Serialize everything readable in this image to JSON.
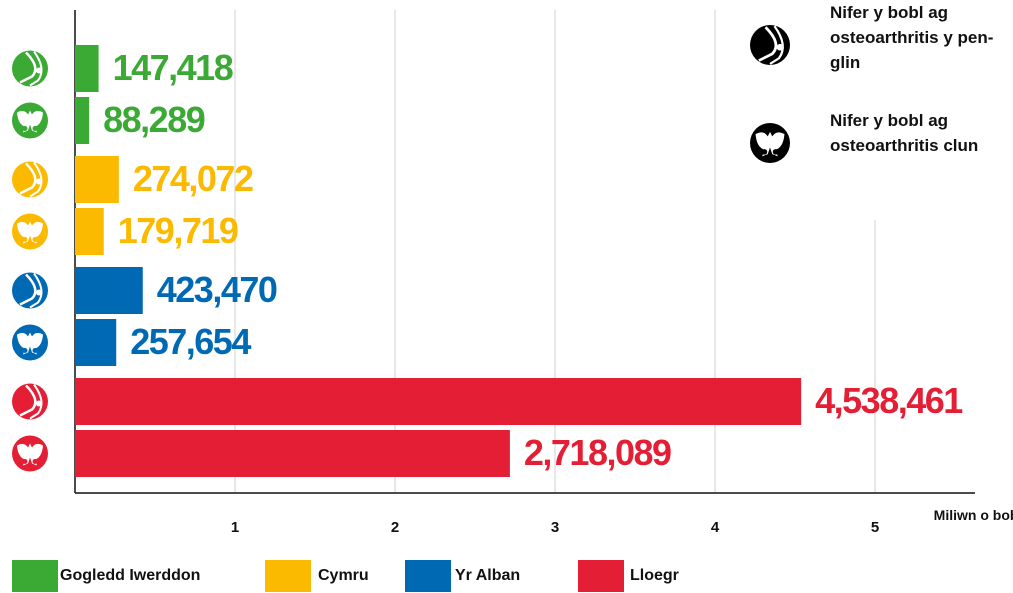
{
  "chart_data": {
    "type": "bar",
    "orientation": "horizontal",
    "categories": [
      "Gogledd Iwerddon",
      "Cymru",
      "Yr Alban",
      "Lloegr"
    ],
    "category_colors": [
      "#3aaa35",
      "#fbb900",
      "#0069b4",
      "#e41f35"
    ],
    "series": [
      {
        "name": "Nifer y bobl ag osteoarthritis y pen-glin",
        "color": "#000000",
        "values": [
          0.147418,
          0.274072,
          0.42347,
          4.538461
        ],
        "value_labels": [
          "147,418",
          "274,072",
          "423,470",
          "4,538,461"
        ]
      },
      {
        "name": "Nifer y bobl ag osteoarthritis clun",
        "color": "#000000",
        "values": [
          0.088289,
          0.179719,
          0.257654,
          2.718089
        ],
        "value_labels": [
          "88,289",
          "179,719",
          "257,654",
          "2,718,089"
        ]
      }
    ],
    "x_label": "Miliwn o bobl",
    "xlim": [
      0,
      5.625
    ],
    "xticks": [
      1,
      2,
      3,
      4,
      5
    ],
    "grid": true
  }
}
